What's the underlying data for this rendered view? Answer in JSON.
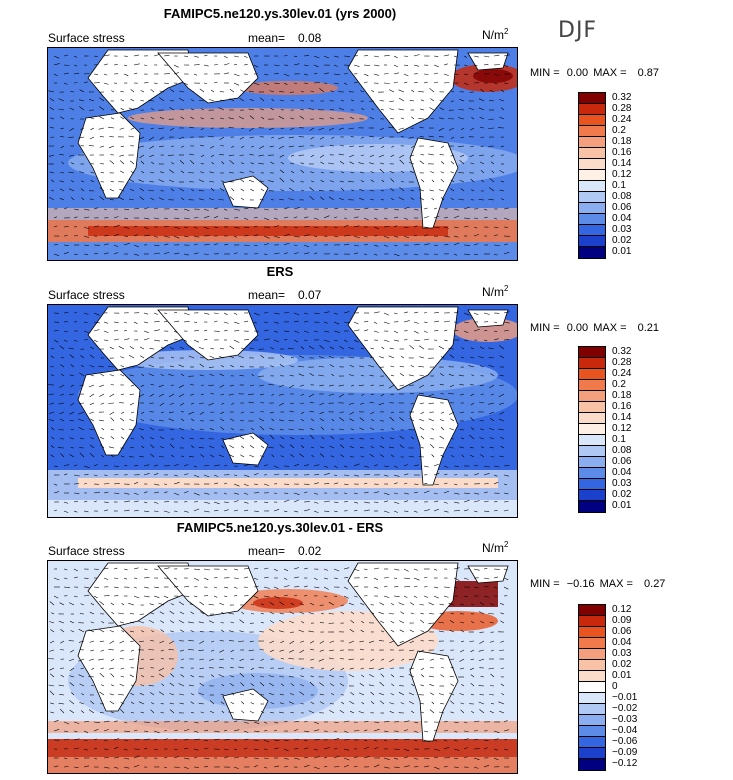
{
  "season": "DJF",
  "panels": [
    {
      "title": "FAMIPC5.ne120.ys.30lev.01 (yrs 2000)",
      "left_label": "Surface stress",
      "mean_label": "mean=",
      "mean_value": "0.08",
      "units_base": "N/m",
      "units_exp": "2",
      "min_label": "MIN =",
      "min_value": "0.00",
      "max_label": "MAX =",
      "max_value": "0.87",
      "colorbar_labels": [
        "0.32",
        "0.28",
        "0.24",
        "0.2",
        "0.18",
        "0.16",
        "0.14",
        "0.12",
        "0.1",
        "0.08",
        "0.06",
        "0.04",
        "0.03",
        "0.02",
        "0.01"
      ],
      "colorbar_colors": [
        "#800000",
        "#c8290c",
        "#e8541f",
        "#f07a4c",
        "#f4a07e",
        "#f8c2a7",
        "#fbdccb",
        "#fff0e6",
        "#dae6fa",
        "#b0c8f4",
        "#8aaeef",
        "#5c8ce8",
        "#3366e0",
        "#1a40cc",
        "#000080"
      ]
    },
    {
      "title": "ERS",
      "left_label": "Surface stress",
      "mean_label": "mean=",
      "mean_value": "0.07",
      "units_base": "N/m",
      "units_exp": "2",
      "min_label": "MIN =",
      "min_value": "0.00",
      "max_label": "MAX =",
      "max_value": "0.21",
      "colorbar_labels": [
        "0.32",
        "0.28",
        "0.24",
        "0.2",
        "0.18",
        "0.16",
        "0.14",
        "0.12",
        "0.1",
        "0.08",
        "0.06",
        "0.04",
        "0.03",
        "0.02",
        "0.01"
      ],
      "colorbar_colors": [
        "#800000",
        "#c8290c",
        "#e8541f",
        "#f07a4c",
        "#f4a07e",
        "#f8c2a7",
        "#fbdccb",
        "#fff0e6",
        "#dae6fa",
        "#b0c8f4",
        "#8aaeef",
        "#5c8ce8",
        "#3366e0",
        "#1a40cc",
        "#000080"
      ]
    },
    {
      "title": "FAMIPC5.ne120.ys.30lev.01 - ERS",
      "left_label": "Surface stress",
      "mean_label": "mean=",
      "mean_value": "0.02",
      "units_base": "N/m",
      "units_exp": "2",
      "min_label": "MIN =",
      "min_value": "−0.16",
      "max_label": "MAX =",
      "max_value": "0.27",
      "colorbar_labels": [
        "0.12",
        "0.09",
        "0.06",
        "0.04",
        "0.03",
        "0.02",
        "0.01",
        "0",
        "−0.01",
        "−0.02",
        "−0.03",
        "−0.04",
        "−0.06",
        "−0.09",
        "−0.12"
      ],
      "colorbar_colors": [
        "#800000",
        "#c8290c",
        "#e8541f",
        "#f07a4c",
        "#f4a07e",
        "#f8c2a7",
        "#fbdccb",
        "#ffffff",
        "#dae6fa",
        "#b0c8f4",
        "#8aaeef",
        "#5c8ce8",
        "#3366e0",
        "#1a40cc",
        "#000080"
      ]
    }
  ],
  "chart_data": [
    {
      "type": "heatmap",
      "title": "FAMIPC5.ne120.ys.30lev.01 (yrs 2000)",
      "variable": "Surface stress",
      "units": "N/m2",
      "season": "DJF",
      "mean": 0.08,
      "min": 0.0,
      "max": 0.87,
      "contour_levels": [
        0.01,
        0.02,
        0.03,
        0.04,
        0.06,
        0.08,
        0.1,
        0.12,
        0.14,
        0.16,
        0.18,
        0.2,
        0.24,
        0.28,
        0.32
      ]
    },
    {
      "type": "heatmap",
      "title": "ERS",
      "variable": "Surface stress",
      "units": "N/m2",
      "season": "DJF",
      "mean": 0.07,
      "min": 0.0,
      "max": 0.21,
      "contour_levels": [
        0.01,
        0.02,
        0.03,
        0.04,
        0.06,
        0.08,
        0.1,
        0.12,
        0.14,
        0.16,
        0.18,
        0.2,
        0.24,
        0.28,
        0.32
      ]
    },
    {
      "type": "heatmap",
      "title": "FAMIPC5.ne120.ys.30lev.01 - ERS",
      "variable": "Surface stress",
      "units": "N/m2",
      "season": "DJF",
      "mean": 0.02,
      "min": -0.16,
      "max": 0.27,
      "contour_levels": [
        -0.12,
        -0.09,
        -0.06,
        -0.04,
        -0.03,
        -0.02,
        -0.01,
        0,
        0.01,
        0.02,
        0.03,
        0.04,
        0.06,
        0.09,
        0.12
      ]
    }
  ]
}
